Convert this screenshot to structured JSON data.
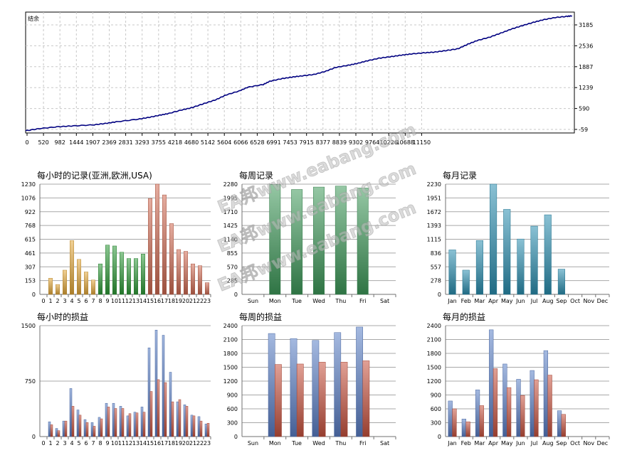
{
  "watermark": {
    "text": "EA邦www.eabang.com"
  },
  "chart_data": [
    {
      "id": "balance",
      "type": "line",
      "title": "结余",
      "x_ticks": [
        "0",
        "520",
        "982",
        "1444",
        "1907",
        "2369",
        "2831",
        "3293",
        "3755",
        "4218",
        "4680",
        "5142",
        "5604",
        "6066",
        "6528",
        "6991",
        "7453",
        "7915",
        "8377",
        "8839",
        "9302",
        "9764",
        "10226",
        "10688",
        "11150"
      ],
      "y_ticks": [
        "3185",
        "2536",
        "1887",
        "1239",
        "590",
        "-59"
      ],
      "ylim": [
        -59,
        3185
      ],
      "xlim": [
        0,
        11550
      ],
      "grid": true,
      "line_color": "#000080",
      "series": [
        {
          "x": [
            0,
            300,
            700,
            1000,
            1444,
            1700,
            1907,
            2369,
            2600,
            2831,
            3000,
            3293,
            3500,
            3755,
            4000,
            4218,
            4500,
            4680,
            5000,
            5142,
            5400,
            5604,
            5800,
            6066,
            6300,
            6528,
            6800,
            6991,
            7200,
            7453,
            7700,
            7915,
            8100,
            8377,
            8600,
            8839,
            9100,
            9302,
            9500,
            9764,
            10000,
            10226,
            10450,
            10688,
            10900,
            11150,
            11400,
            11500
          ],
          "y": [
            0,
            60,
            110,
            130,
            160,
            200,
            240,
            310,
            360,
            420,
            460,
            560,
            620,
            730,
            830,
            960,
            1070,
            1170,
            1240,
            1330,
            1400,
            1440,
            1470,
            1510,
            1590,
            1700,
            1760,
            1810,
            1880,
            1950,
            1990,
            2030,
            2060,
            2090,
            2110,
            2150,
            2200,
            2320,
            2420,
            2510,
            2620,
            2730,
            2820,
            2910,
            2980,
            3040,
            3070,
            3085
          ]
        }
      ]
    },
    {
      "id": "hourly-records",
      "type": "bar",
      "title": "每小时的记录(亚洲,欧洲,USA)",
      "categories": [
        "0",
        "1",
        "2",
        "3",
        "4",
        "5",
        "6",
        "7",
        "8",
        "9",
        "10",
        "11",
        "12",
        "13",
        "14",
        "15",
        "16",
        "17",
        "18",
        "19",
        "20",
        "21",
        "22",
        "23"
      ],
      "values": [
        0,
        180,
        110,
        270,
        600,
        390,
        250,
        160,
        340,
        550,
        540,
        470,
        400,
        400,
        450,
        1070,
        1230,
        1110,
        790,
        500,
        480,
        340,
        320,
        130
      ],
      "colors": [
        "#e3a83a",
        "#e3a83a",
        "#e3a83a",
        "#e3a83a",
        "#e3a83a",
        "#e3a83a",
        "#e3a83a",
        "#e3a83a",
        "#2e9a38",
        "#2e9a38",
        "#2e9a38",
        "#2e9a38",
        "#2e9a38",
        "#2e9a38",
        "#2e9a38",
        "#cf6a52",
        "#cf6a52",
        "#cf6a52",
        "#cf6a52",
        "#cf6a52",
        "#cf6a52",
        "#cf6a52",
        "#cf6a52",
        "#cf6a52"
      ],
      "y_ticks": [
        "1230",
        "1076",
        "922",
        "768",
        "615",
        "461",
        "307",
        "153",
        "0"
      ],
      "ylim": [
        0,
        1230
      ],
      "grid": true
    },
    {
      "id": "weekly-records",
      "type": "bar",
      "title": "每周记录",
      "categories": [
        "Sun",
        "Mon",
        "Tue",
        "Wed",
        "Thu",
        "Fri",
        "Sat"
      ],
      "values": [
        0,
        2270,
        2170,
        2220,
        2240,
        2200,
        0
      ],
      "color": "#3e9a5a",
      "y_ticks": [
        "2280",
        "1995",
        "1710",
        "1425",
        "1140",
        "855",
        "570",
        "285",
        "0"
      ],
      "ylim": [
        0,
        2280
      ],
      "grid": true
    },
    {
      "id": "monthly-records",
      "type": "bar",
      "title": "每月记录",
      "categories": [
        "Jan",
        "Feb",
        "Mar",
        "Apr",
        "May",
        "Jun",
        "Jul",
        "Aug",
        "Sep",
        "Oct",
        "Nov",
        "Dec"
      ],
      "values": [
        900,
        490,
        1090,
        2230,
        1720,
        1120,
        1380,
        1610,
        510,
        0,
        0,
        0
      ],
      "color": "#2a8fb0",
      "y_ticks": [
        "2230",
        "1951",
        "1672",
        "1393",
        "1115",
        "836",
        "557",
        "278",
        "0"
      ],
      "ylim": [
        0,
        2230
      ],
      "grid": true
    },
    {
      "id": "hourly-profit",
      "type": "bar",
      "title": "每小时的损益",
      "categories": [
        "0",
        "1",
        "2",
        "3",
        "4",
        "5",
        "6",
        "7",
        "8",
        "9",
        "10",
        "11",
        "12",
        "13",
        "14",
        "15",
        "16",
        "17",
        "18",
        "19",
        "20",
        "21",
        "22",
        "23"
      ],
      "series": [
        {
          "color": "#5a7fc7",
          "values": [
            0,
            200,
            110,
            210,
            650,
            360,
            230,
            190,
            260,
            450,
            450,
            410,
            280,
            330,
            400,
            1200,
            1440,
            1370,
            870,
            470,
            430,
            290,
            270,
            170
          ]
        },
        {
          "color": "#c8523e",
          "values": [
            0,
            160,
            80,
            210,
            410,
            290,
            190,
            140,
            240,
            400,
            380,
            380,
            310,
            320,
            330,
            610,
            770,
            730,
            470,
            500,
            410,
            280,
            210,
            180
          ]
        }
      ],
      "y_ticks": [
        "1500",
        "750",
        "0"
      ],
      "ylim": [
        0,
        1500
      ],
      "grid": true
    },
    {
      "id": "weekly-profit",
      "type": "bar",
      "title": "每周的损益",
      "categories": [
        "Sun",
        "Mon",
        "Tue",
        "Wed",
        "Thu",
        "Fri",
        "Sat"
      ],
      "series": [
        {
          "color": "#5a7fc7",
          "values": [
            0,
            2230,
            2120,
            2080,
            2250,
            2370,
            0
          ]
        },
        {
          "color": "#c8523e",
          "values": [
            0,
            1560,
            1570,
            1610,
            1610,
            1640,
            0
          ]
        }
      ],
      "y_ticks": [
        "2400",
        "2100",
        "1800",
        "1500",
        "1200",
        "900",
        "600",
        "300",
        "0"
      ],
      "ylim": [
        0,
        2400
      ],
      "grid": true
    },
    {
      "id": "monthly-profit",
      "type": "bar",
      "title": "每月的损益",
      "categories": [
        "Jan",
        "Feb",
        "Mar",
        "Apr",
        "May",
        "Jun",
        "Jul",
        "Aug",
        "Sep",
        "Oct",
        "Nov",
        "Dec"
      ],
      "series": [
        {
          "color": "#5a7fc7",
          "values": [
            770,
            380,
            1010,
            2310,
            1570,
            1240,
            1430,
            1860,
            560,
            0,
            0,
            0
          ]
        },
        {
          "color": "#c8523e",
          "values": [
            600,
            320,
            670,
            1470,
            1060,
            890,
            1230,
            1330,
            480,
            0,
            0,
            0
          ]
        }
      ],
      "y_ticks": [
        "2400",
        "2100",
        "1800",
        "1500",
        "1200",
        "900",
        "600",
        "300",
        "0"
      ],
      "ylim": [
        0,
        2400
      ],
      "grid": true
    }
  ]
}
